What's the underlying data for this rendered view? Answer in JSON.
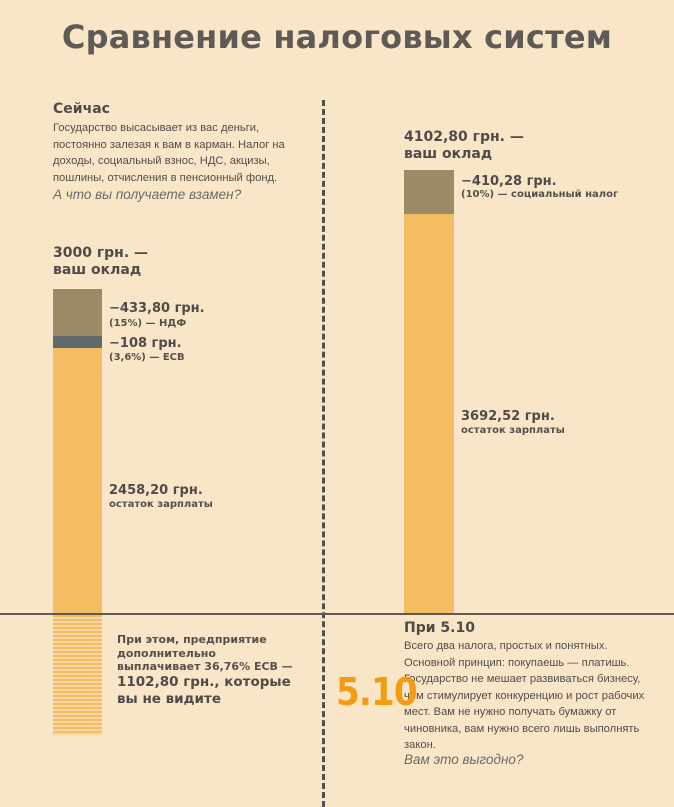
{
  "title": "Сравнение налоговых систем",
  "left": {
    "heading": "Сейчас",
    "paragraph_lines": [
      "Государство высасывает из вас деньги,",
      "постоянно залезая к вам в карман. Налог на",
      "доходы, социальный взнос, НДС, акцизы,",
      "пошлины, отчисления в пенсионный фонд."
    ],
    "question": "А что вы получаете взамен?",
    "salary_lines": [
      "3000 грн. —",
      "ваш оклад"
    ],
    "employer_lines": [
      "При этом, предприятие",
      "дополнительно",
      "выплачивает 36,76% ЕСВ —"
    ],
    "employer_big_lines": [
      "1102,80 грн., которые",
      "вы не видите"
    ]
  },
  "right": {
    "salary_lines": [
      "4102,80 грн. —",
      "ваш оклад"
    ],
    "heading": "При 5.10",
    "paragraph_lines": [
      "Всего два налога, простых и понятных.",
      "Основной принцип: покупаешь — платишь.",
      "Государство не мешает развиваться бизнесу,",
      "чем стимулирует конкуренцию и рост рабочих",
      "мест. Вам не нужно получать бумажку от",
      "чиновника, вам нужно всего лишь выполнять",
      "закон."
    ],
    "question": "Вам это выгодно?",
    "logo_text": "5.10"
  },
  "colors": {
    "background": "#f9e6c9",
    "tax_brown": "#9b8b67",
    "esv_slate": "#5f6a6a",
    "remainder_orange": "#f5bd61",
    "logo_orange": "#f39c12"
  },
  "chart_data": [
    {
      "type": "bar",
      "stacked": true,
      "total": 3000,
      "unit": "грн.",
      "segments": [
        {
          "name": "НДФ",
          "value": 433.8,
          "amount_label": "−433,80 грн.",
          "note": "(15%) — НДФ",
          "color": "#9b8b67"
        },
        {
          "name": "ЕСВ",
          "value": 108,
          "amount_label": "−108 грн.",
          "note": "(3,6%) — ЕСВ",
          "color": "#5f6a6a"
        },
        {
          "name": "остаток зарплаты",
          "value": 2458.2,
          "amount_label": "2458,20 грн.",
          "note": "остаток зарплаты",
          "color": "#f5bd61"
        }
      ]
    },
    {
      "type": "bar",
      "stacked": true,
      "total": 4102.8,
      "unit": "грн.",
      "segments": [
        {
          "name": "социальный налог",
          "value": 410.28,
          "amount_label": "−410,28 грн.",
          "note": "(10%) — социальный налог",
          "color": "#9b8b67"
        },
        {
          "name": "остаток зарплаты",
          "value": 3692.52,
          "amount_label": "3692,52 грн.",
          "note": "остаток зарплаты",
          "color": "#f5bd61"
        }
      ]
    }
  ]
}
